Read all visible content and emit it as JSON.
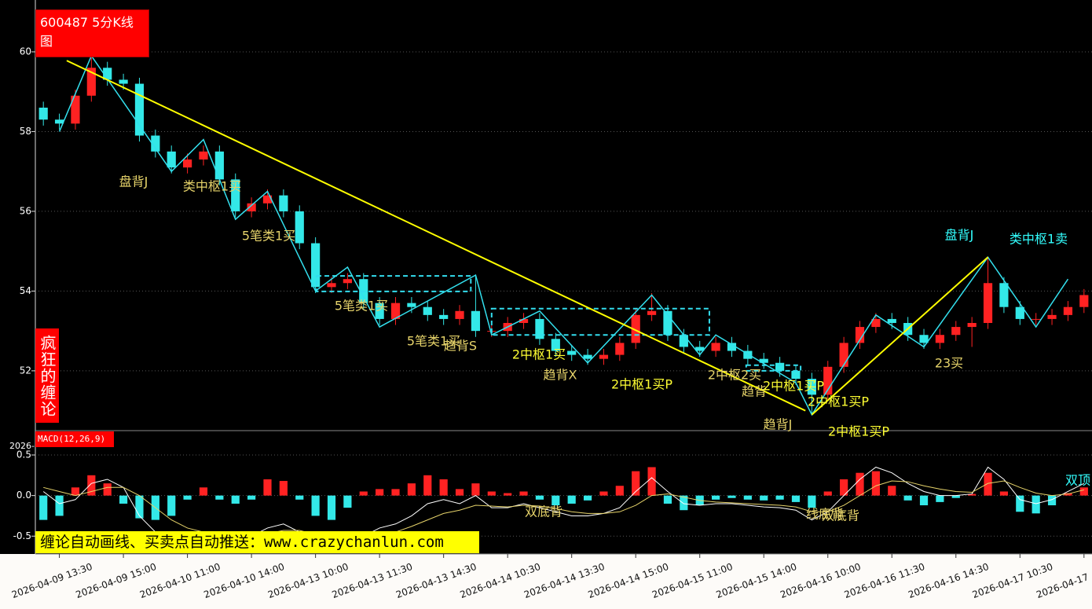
{
  "chart_data": [
    {
      "type": "candlestick",
      "title": "600487 5分K线图",
      "side_label": "疯狂的缠论",
      "xlim": [
        -0.5,
        65.5
      ],
      "xticks": [
        {
          "value": 1,
          "label": "2026-04-09 13:30"
        },
        {
          "value": 5,
          "label": "2026-04-09 15:00"
        },
        {
          "value": 9,
          "label": "2026-04-10 11:00"
        },
        {
          "value": 13,
          "label": "2026-04-10 14:00"
        },
        {
          "value": 17,
          "label": "2026-04-13 10:00"
        },
        {
          "value": 21,
          "label": "2026-04-13 11:30"
        },
        {
          "value": 25,
          "label": "2026-04-13 14:30"
        },
        {
          "value": 29,
          "label": "2026-04-14 10:30"
        },
        {
          "value": 33,
          "label": "2026-04-14 13:30"
        },
        {
          "value": 37,
          "label": "2026-04-14 15:00"
        },
        {
          "value": 41,
          "label": "2026-04-15 11:00"
        },
        {
          "value": 45,
          "label": "2026-04-15 14:00"
        },
        {
          "value": 49,
          "label": "2026-04-16 10:00"
        },
        {
          "value": 53,
          "label": "2026-04-16 11:30"
        },
        {
          "value": 57,
          "label": "2026-04-16 14:30"
        },
        {
          "value": 61,
          "label": "2026-04-17 10:30"
        },
        {
          "value": 65,
          "label": "2026-04-17"
        }
      ],
      "ylim": [
        50.5,
        61.3
      ],
      "yticks": [
        52,
        54,
        56,
        58,
        60
      ],
      "grid": true,
      "up_color": "#ff2222",
      "down_color": "#33e8e8",
      "open": [
        58.6,
        58.3,
        58.2,
        58.9,
        59.6,
        59.3,
        59.2,
        57.9,
        57.5,
        57.1,
        57.3,
        57.5,
        56.8,
        56.0,
        56.2,
        56.4,
        56.0,
        55.2,
        54.1,
        54.2,
        54.3,
        53.7,
        53.3,
        53.7,
        53.6,
        53.4,
        53.3,
        53.5,
        53.0,
        53.0,
        53.2,
        53.3,
        52.8,
        52.5,
        52.4,
        52.3,
        52.4,
        52.7,
        53.4,
        53.5,
        52.9,
        52.6,
        52.5,
        52.7,
        52.5,
        52.3,
        52.2,
        52.0,
        51.8,
        51.4,
        52.1,
        52.7,
        53.1,
        53.3,
        53.2,
        52.9,
        52.7,
        52.9,
        53.1,
        53.2,
        54.2,
        53.6,
        53.3,
        53.3,
        53.4,
        53.6
      ],
      "high": [
        58.75,
        58.45,
        59.05,
        59.9,
        59.75,
        59.45,
        59.35,
        58.05,
        57.65,
        57.45,
        57.65,
        57.65,
        56.95,
        56.35,
        56.55,
        56.55,
        56.15,
        55.35,
        54.35,
        54.45,
        54.45,
        53.85,
        53.85,
        53.85,
        53.75,
        53.55,
        53.65,
        54.4,
        53.15,
        53.35,
        53.45,
        53.45,
        52.95,
        52.65,
        52.55,
        52.55,
        52.85,
        53.55,
        53.95,
        53.65,
        53.05,
        52.75,
        52.85,
        52.85,
        52.65,
        52.45,
        52.35,
        52.15,
        51.95,
        52.25,
        52.85,
        53.25,
        53.45,
        53.45,
        53.35,
        53.05,
        53.05,
        53.25,
        53.35,
        54.85,
        54.35,
        53.75,
        53.45,
        53.55,
        53.75,
        54.05
      ],
      "low": [
        58.15,
        58.05,
        58.05,
        58.75,
        59.15,
        59.05,
        57.75,
        57.35,
        56.95,
        56.95,
        57.15,
        56.65,
        55.85,
        55.85,
        56.05,
        55.85,
        55.05,
        53.95,
        53.95,
        54.05,
        53.55,
        53.15,
        53.15,
        53.45,
        53.25,
        53.15,
        53.15,
        52.85,
        52.85,
        52.85,
        53.05,
        52.65,
        52.35,
        52.25,
        52.15,
        52.15,
        52.25,
        52.55,
        53.25,
        52.75,
        52.45,
        52.35,
        52.35,
        52.35,
        52.15,
        52.05,
        51.85,
        51.65,
        50.9,
        51.25,
        51.95,
        52.55,
        52.95,
        53.05,
        52.75,
        52.55,
        52.55,
        52.75,
        52.6,
        53.05,
        53.45,
        53.15,
        53.15,
        53.15,
        53.25,
        53.45
      ],
      "close": [
        58.3,
        58.2,
        58.9,
        59.6,
        59.3,
        59.2,
        57.9,
        57.5,
        57.1,
        57.3,
        57.5,
        56.8,
        56.0,
        56.2,
        56.4,
        56.0,
        55.2,
        54.1,
        54.2,
        54.3,
        53.7,
        53.3,
        53.7,
        53.6,
        53.4,
        53.3,
        53.5,
        53.0,
        53.0,
        53.2,
        53.3,
        52.8,
        52.5,
        52.4,
        52.3,
        52.4,
        52.7,
        53.4,
        53.5,
        52.9,
        52.6,
        52.5,
        52.7,
        52.5,
        52.3,
        52.2,
        52.0,
        51.8,
        51.4,
        52.1,
        52.7,
        53.1,
        53.3,
        53.2,
        52.9,
        52.7,
        52.9,
        53.1,
        53.2,
        54.2,
        53.6,
        53.3,
        53.3,
        53.4,
        53.6,
        53.9
      ],
      "bi": {
        "color": "#33e0ee",
        "x": [
          1,
          3,
          8,
          10,
          12,
          14,
          17,
          19,
          21,
          27,
          28,
          31,
          34,
          38,
          41,
          42,
          47,
          48,
          52,
          55,
          59,
          62,
          64
        ],
        "y": [
          58.0,
          59.9,
          57.0,
          57.8,
          55.8,
          56.5,
          54.0,
          54.6,
          53.1,
          54.4,
          52.9,
          53.5,
          52.2,
          53.9,
          52.4,
          52.9,
          51.7,
          50.9,
          53.4,
          52.6,
          54.85,
          53.1,
          54.3
        ]
      },
      "trend_lines": {
        "color": "#ffff00",
        "segments": [
          {
            "x": [
              1.46,
              47.6
            ],
            "y": [
              59.78,
              51.0
            ]
          },
          {
            "x": [
              48,
              59
            ],
            "y": [
              50.9,
              54.85
            ]
          }
        ]
      },
      "zhongshu": {
        "color": "#33ddee",
        "boxes": [
          {
            "x": [
              17.07,
              26.7
            ],
            "y": [
              53.99,
              54.38
            ]
          },
          {
            "x": [
              28,
              41.6
            ],
            "y": [
              52.9,
              53.56
            ]
          },
          {
            "x": [
              43.9,
              47.3
            ],
            "y": [
              52.0,
              52.14
            ]
          }
        ]
      },
      "annotations": [
        {
          "text": "盘背J",
          "color": "#e6d36a"
        },
        {
          "text": "类中枢1买",
          "color": "#e6d36a"
        },
        {
          "text": "5笔类1买",
          "color": "#e6d36a"
        },
        {
          "text": "5笔类1买",
          "color": "#e6d36a"
        },
        {
          "text": "5笔类1买",
          "color": "#e6d36a"
        },
        {
          "text": "趋背S",
          "color": "#e6d36a"
        },
        {
          "text": "2中枢1买",
          "color": "#ffff33"
        },
        {
          "text": "趋背X",
          "color": "#e6d36a"
        },
        {
          "text": "2中枢1买P",
          "color": "#ffff33"
        },
        {
          "text": "2中枢2买",
          "color": "#e6d36a"
        },
        {
          "text": "趋背",
          "color": "#e6d36a"
        },
        {
          "text": "2中枢1买P",
          "color": "#ffff33"
        },
        {
          "text": "2中枢1买P",
          "color": "#ffff33"
        },
        {
          "text": "趋背J",
          "color": "#e6d36a"
        },
        {
          "text": "2中枢1买P",
          "color": "#ffff33"
        },
        {
          "text": "23买",
          "color": "#e6d36a"
        },
        {
          "text": "盘背J",
          "color": "#33ffff"
        },
        {
          "text": "类中枢1卖",
          "color": "#33ffff"
        }
      ]
    },
    {
      "type": "macd",
      "title": "MACD(12,26,9)",
      "partial_label": "2026-",
      "ylim": [
        -0.72,
        0.8
      ],
      "yticks": [
        0.5,
        {
          "value": 0,
          "label": "0.0"
        },
        -0.5
      ],
      "grid": true,
      "histogram": {
        "up_color": "#ff2222",
        "down_color": "#33e8e8",
        "values": [
          -0.3,
          -0.25,
          0.1,
          0.25,
          0.15,
          -0.1,
          -0.28,
          -0.3,
          -0.25,
          -0.05,
          0.1,
          -0.05,
          -0.1,
          -0.05,
          0.2,
          0.18,
          -0.05,
          -0.25,
          -0.3,
          -0.15,
          0.05,
          0.08,
          0.08,
          0.15,
          0.25,
          0.2,
          0.08,
          0.15,
          0.05,
          0.03,
          0.05,
          -0.05,
          -0.12,
          -0.1,
          -0.06,
          0.05,
          0.12,
          0.3,
          0.35,
          -0.1,
          -0.18,
          -0.12,
          -0.05,
          -0.03,
          -0.05,
          -0.06,
          -0.05,
          -0.08,
          -0.15,
          0.05,
          0.2,
          0.28,
          0.3,
          0.12,
          -0.06,
          -0.12,
          -0.08,
          -0.03,
          0.02,
          0.28,
          0.05,
          -0.2,
          -0.22,
          -0.12,
          0.03,
          0.1
        ]
      },
      "series": [
        {
          "color": "#ffffff",
          "values": [
            0.05,
            -0.1,
            -0.05,
            0.15,
            0.2,
            0.1,
            -0.25,
            -0.45,
            -0.55,
            -0.5,
            -0.45,
            -0.5,
            -0.55,
            -0.5,
            -0.4,
            -0.35,
            -0.45,
            -0.6,
            -0.65,
            -0.6,
            -0.5,
            -0.4,
            -0.35,
            -0.25,
            -0.1,
            -0.05,
            -0.1,
            0.0,
            -0.15,
            -0.15,
            -0.1,
            -0.15,
            -0.2,
            -0.25,
            -0.25,
            -0.22,
            -0.15,
            0.05,
            0.22,
            0.05,
            -0.1,
            -0.12,
            -0.1,
            -0.1,
            -0.12,
            -0.14,
            -0.15,
            -0.18,
            -0.3,
            -0.2,
            0.0,
            0.2,
            0.35,
            0.28,
            0.15,
            0.05,
            0.0,
            0.0,
            0.02,
            0.35,
            0.2,
            -0.05,
            -0.1,
            -0.05,
            0.05,
            0.15
          ]
        },
        {
          "color": "#e6d36a",
          "values": [
            0.1,
            0.05,
            0.0,
            0.05,
            0.1,
            0.1,
            0.0,
            -0.15,
            -0.3,
            -0.4,
            -0.45,
            -0.47,
            -0.5,
            -0.5,
            -0.47,
            -0.43,
            -0.43,
            -0.48,
            -0.55,
            -0.58,
            -0.55,
            -0.5,
            -0.45,
            -0.38,
            -0.3,
            -0.22,
            -0.18,
            -0.12,
            -0.13,
            -0.14,
            -0.12,
            -0.13,
            -0.16,
            -0.2,
            -0.22,
            -0.22,
            -0.2,
            -0.12,
            0.0,
            0.02,
            -0.02,
            -0.06,
            -0.08,
            -0.09,
            -0.1,
            -0.11,
            -0.12,
            -0.14,
            -0.2,
            -0.2,
            -0.12,
            0.0,
            0.12,
            0.18,
            0.17,
            0.12,
            0.08,
            0.05,
            0.04,
            0.15,
            0.18,
            0.1,
            0.03,
            0.0,
            0.02,
            0.07
          ]
        }
      ],
      "annotations": [
        {
          "text": "双底背",
          "color": "#e6d36a"
        },
        {
          "text": "线底背",
          "color": "#e6d36a"
        },
        {
          "text": "双底背",
          "color": "#e6d36a"
        },
        {
          "text": "双顶",
          "color": "#33ffff"
        }
      ]
    }
  ],
  "banner": "缠论自动画线、买卖点自动推送：www.crazychanlun.com"
}
